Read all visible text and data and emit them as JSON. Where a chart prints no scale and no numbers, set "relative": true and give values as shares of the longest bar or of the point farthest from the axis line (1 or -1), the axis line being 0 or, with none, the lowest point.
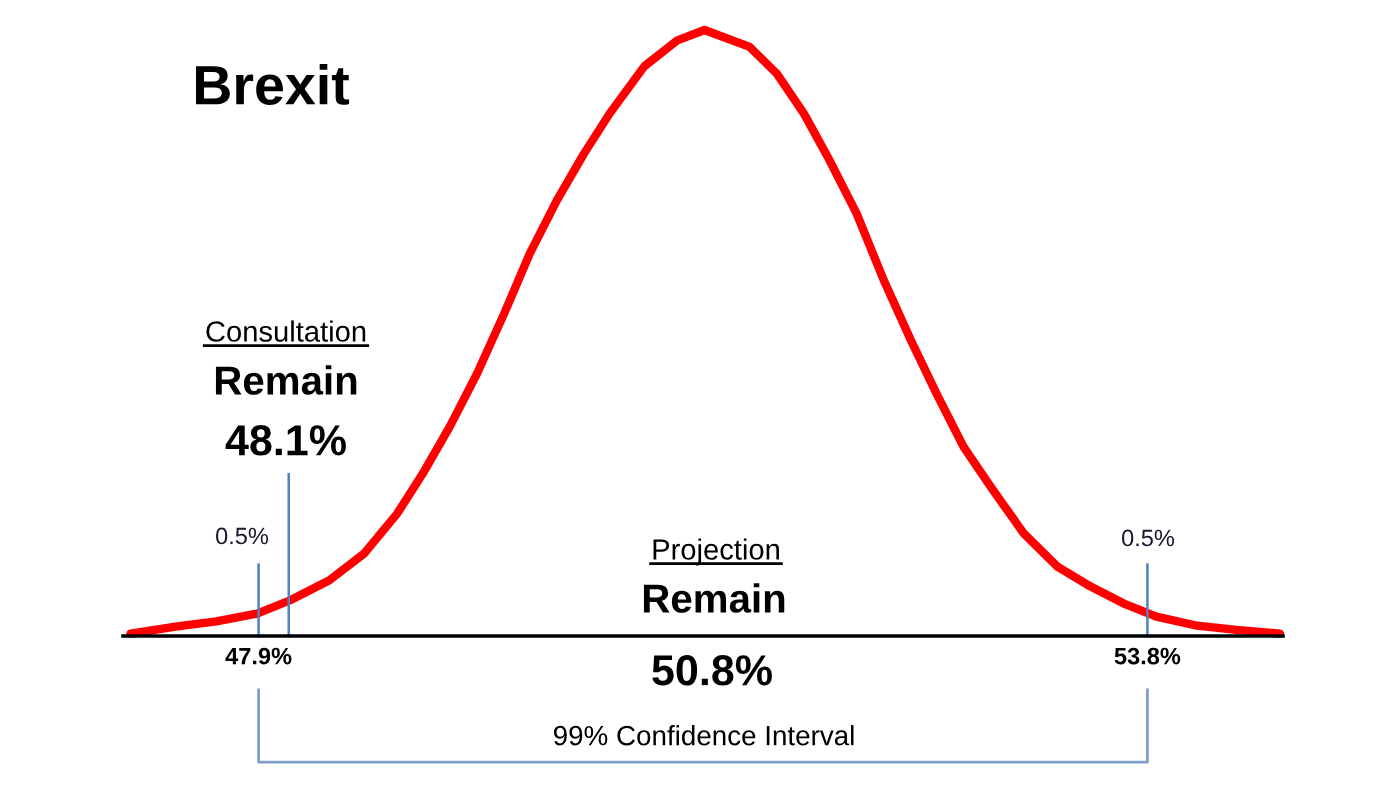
{
  "chart_data": {
    "type": "line",
    "title": "Brexit",
    "relative": true,
    "line_style": "solid",
    "x": [
      47.05,
      47.36,
      47.62,
      47.89,
      48.11,
      48.37,
      48.6,
      48.82,
      48.99,
      49.17,
      49.35,
      49.53,
      49.7,
      49.88,
      50.06,
      50.23,
      50.46,
      50.68,
      50.86,
      51.16,
      51.34,
      51.52,
      51.69,
      51.87,
      52.05,
      52.23,
      52.4,
      52.58,
      52.76,
      52.98,
      53.2,
      53.42,
      53.64,
      53.86,
      54.13,
      54.39,
      54.68
    ],
    "series": [
      {
        "color": "#ff0000",
        "values": [
          0.004,
          0.016,
          0.024,
          0.037,
          0.059,
          0.092,
          0.136,
          0.202,
          0.268,
          0.346,
          0.433,
          0.532,
          0.631,
          0.719,
          0.796,
          0.862,
          0.94,
          0.983,
          1.0,
          0.972,
          0.928,
          0.862,
          0.785,
          0.697,
          0.587,
          0.488,
          0.4,
          0.312,
          0.246,
          0.169,
          0.115,
          0.082,
          0.054,
          0.032,
          0.017,
          0.01,
          0.004
        ]
      }
    ],
    "xlim": [
      47.0,
      54.7
    ],
    "xticks": [
      {
        "value": 47.9,
        "label": "47.9%"
      },
      {
        "value": 53.8,
        "label": "53.8%"
      }
    ],
    "ref_lines": [
      {
        "axis": "x",
        "value": 47.9,
        "color": "#4f81bd"
      },
      {
        "axis": "x",
        "value": 48.1,
        "color": "#4f81bd"
      },
      {
        "axis": "x",
        "value": 53.8,
        "color": "#4f81bd"
      }
    ],
    "annotations": [
      "Consultation",
      "Remain",
      "48.1%",
      "0.5%",
      "0.5%",
      "Projection",
      "Remain",
      "50.8%",
      "99% Confidence Interval"
    ]
  }
}
